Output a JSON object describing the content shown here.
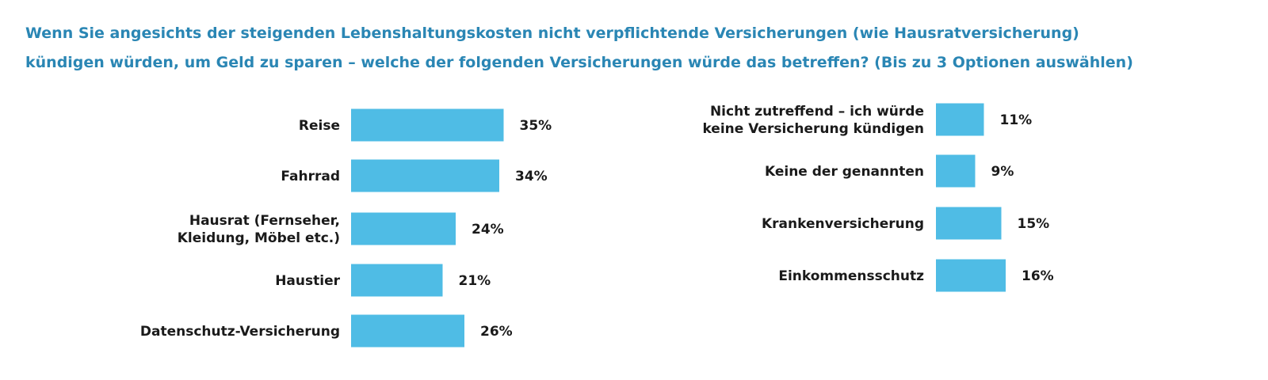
{
  "title_lines": [
    "Wenn Sie angesichts der steigenden Lebenshaltungskosten nicht verpflichtende Versicherungen (wie Hausratversicherung)",
    "kündigen würden, um Geld zu sparen – welche der folgenden Versicherungen würde das betreffen? (Bis zu 3 Optionen auswählen)"
  ],
  "colors": {
    "bar": "#4fbce5",
    "title": "#2a86b4",
    "text": "#1a1a1a"
  },
  "chart_data": [
    {
      "type": "bar",
      "orientation": "horizontal",
      "categories": [
        [
          "Reise"
        ],
        [
          "Fahrrad"
        ],
        [
          "Hausrat (Fernseher,",
          "Kleidung, Möbel etc.)"
        ],
        [
          "Haustier"
        ],
        [
          "Datenschutz-Versicherung"
        ]
      ],
      "values": [
        35,
        34,
        24,
        21,
        26
      ],
      "value_labels": [
        "35%",
        "34%",
        "24%",
        "21%",
        "26%"
      ],
      "unit": "%"
    },
    {
      "type": "bar",
      "orientation": "horizontal",
      "categories": [
        [
          "Nicht zutreffend – ich würde",
          "keine Versicherung kündigen"
        ],
        [
          "Keine der genannten"
        ],
        [
          "Krankenversicherung"
        ],
        [
          "Einkommensschutz"
        ]
      ],
      "values": [
        11,
        9,
        15,
        16
      ],
      "value_labels": [
        "11%",
        "9%",
        "15%",
        "16%"
      ],
      "unit": "%"
    }
  ]
}
